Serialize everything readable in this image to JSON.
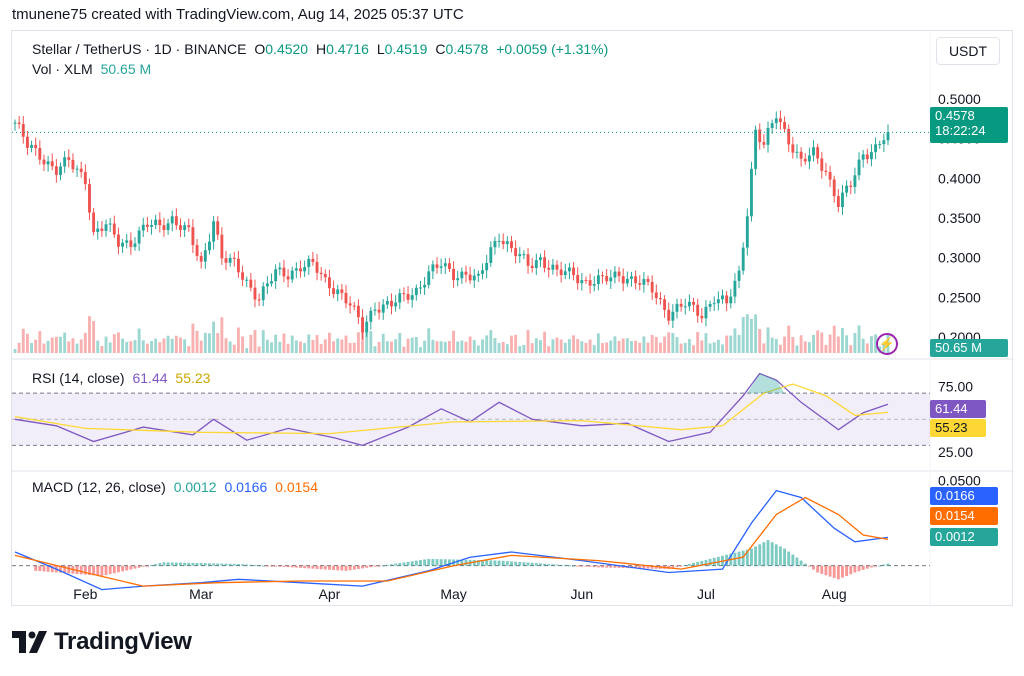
{
  "header": {
    "caption": "tmunene75 created with TradingView.com, Aug 14, 2025 05:37 UTC"
  },
  "symbol": {
    "name": "Stellar / TetherUS · 1D · BINANCE",
    "o_label": "O",
    "o": "0.4520",
    "h_label": "H",
    "h": "0.4716",
    "l_label": "L",
    "l": "0.4519",
    "c_label": "C",
    "c": "0.4578",
    "change": "+0.0059 (+1.31%)",
    "currency": "USDT"
  },
  "vol": {
    "label": "Vol · XLM",
    "value": "50.65 M",
    "tag": "50.65 M"
  },
  "price_tag": {
    "value": "0.4578",
    "countdown": "18:22:24"
  },
  "rsi": {
    "label": "RSI (14, close)",
    "value": "61.44",
    "ma": "55.23",
    "tick_hi": "75.00",
    "tick_lo": "25.00"
  },
  "macd": {
    "label": "MACD (12, 26, close)",
    "hist": "0.0012",
    "macd": "0.0166",
    "signal": "0.0154",
    "tick_top": "0.0500"
  },
  "branding": {
    "name": "TradingView"
  },
  "colors": {
    "up": "#26a69a",
    "down": "#ef5350",
    "rsi_line": "#7e57c2",
    "rsi_ma": "#fdd835",
    "macd_line": "#2962ff",
    "signal_line": "#ff6d00",
    "last_price": "#089981"
  },
  "chart_data": {
    "type": "candlestick",
    "title": "Stellar / TetherUS · 1D · BINANCE",
    "y_ticks": [
      "0.5000",
      "0.4500",
      "0.4000",
      "0.3500",
      "0.3000",
      "0.2500",
      "0.2000"
    ],
    "ylim": [
      0.18,
      0.53
    ],
    "x_ticks": [
      "Feb",
      "Mar",
      "Apr",
      "May",
      "Jun",
      "Jul",
      "Aug"
    ],
    "x_tick_dates": [
      "2025-02-01",
      "2025-03-01",
      "2025-04-01",
      "2025-05-01",
      "2025-06-01",
      "2025-07-01",
      "2025-08-01"
    ],
    "date_range": [
      "2025-01-15",
      "2025-08-14"
    ],
    "close_path": [
      [
        "2025-01-15",
        0.47
      ],
      [
        "2025-01-18",
        0.44
      ],
      [
        "2025-01-21",
        0.43
      ],
      [
        "2025-01-25",
        0.41
      ],
      [
        "2025-01-28",
        0.42
      ],
      [
        "2025-02-01",
        0.4
      ],
      [
        "2025-02-03",
        0.33
      ],
      [
        "2025-02-06",
        0.34
      ],
      [
        "2025-02-09",
        0.32
      ],
      [
        "2025-02-12",
        0.32
      ],
      [
        "2025-02-16",
        0.34
      ],
      [
        "2025-02-19",
        0.34
      ],
      [
        "2025-02-22",
        0.35
      ],
      [
        "2025-02-26",
        0.33
      ],
      [
        "2025-03-01",
        0.29
      ],
      [
        "2025-03-04",
        0.35
      ],
      [
        "2025-03-06",
        0.3
      ],
      [
        "2025-03-09",
        0.29
      ],
      [
        "2025-03-12",
        0.27
      ],
      [
        "2025-03-15",
        0.25
      ],
      [
        "2025-03-19",
        0.28
      ],
      [
        "2025-03-22",
        0.28
      ],
      [
        "2025-03-25",
        0.29
      ],
      [
        "2025-03-28",
        0.29
      ],
      [
        "2025-03-31",
        0.27
      ],
      [
        "2025-04-03",
        0.26
      ],
      [
        "2025-04-06",
        0.24
      ],
      [
        "2025-04-09",
        0.21
      ],
      [
        "2025-04-12",
        0.24
      ],
      [
        "2025-04-16",
        0.24
      ],
      [
        "2025-04-19",
        0.25
      ],
      [
        "2025-04-22",
        0.26
      ],
      [
        "2025-04-25",
        0.28
      ],
      [
        "2025-04-28",
        0.29
      ],
      [
        "2025-05-01",
        0.28
      ],
      [
        "2025-05-04",
        0.28
      ],
      [
        "2025-05-07",
        0.27
      ],
      [
        "2025-05-10",
        0.31
      ],
      [
        "2025-05-12",
        0.33
      ],
      [
        "2025-05-15",
        0.31
      ],
      [
        "2025-05-19",
        0.29
      ],
      [
        "2025-05-22",
        0.3
      ],
      [
        "2025-05-26",
        0.28
      ],
      [
        "2025-05-30",
        0.28
      ],
      [
        "2025-06-02",
        0.27
      ],
      [
        "2025-06-06",
        0.27
      ],
      [
        "2025-06-10",
        0.28
      ],
      [
        "2025-06-14",
        0.27
      ],
      [
        "2025-06-18",
        0.26
      ],
      [
        "2025-06-22",
        0.23
      ],
      [
        "2025-06-26",
        0.24
      ],
      [
        "2025-06-30",
        0.23
      ],
      [
        "2025-07-03",
        0.25
      ],
      [
        "2025-07-06",
        0.24
      ],
      [
        "2025-07-09",
        0.28
      ],
      [
        "2025-07-11",
        0.36
      ],
      [
        "2025-07-13",
        0.46
      ],
      [
        "2025-07-15",
        0.44
      ],
      [
        "2025-07-18",
        0.48
      ],
      [
        "2025-07-21",
        0.45
      ],
      [
        "2025-07-24",
        0.42
      ],
      [
        "2025-07-27",
        0.43
      ],
      [
        "2025-07-30",
        0.41
      ],
      [
        "2025-08-02",
        0.37
      ],
      [
        "2025-08-05",
        0.39
      ],
      [
        "2025-08-08",
        0.43
      ],
      [
        "2025-08-11",
        0.44
      ],
      [
        "2025-08-14",
        0.4578
      ]
    ],
    "last_price": 0.4578,
    "volume_last": "50.65 M",
    "rsi": {
      "ylim": [
        15,
        90
      ],
      "bands": [
        70,
        30
      ],
      "ticks": [
        75,
        25
      ],
      "series": [
        {
          "name": "RSI",
          "points": [
            [
              "2025-01-15",
              50
            ],
            [
              "2025-01-25",
              45
            ],
            [
              "2025-02-03",
              33
            ],
            [
              "2025-02-15",
              44
            ],
            [
              "2025-02-27",
              38
            ],
            [
              "2025-03-04",
              50
            ],
            [
              "2025-03-12",
              34
            ],
            [
              "2025-03-22",
              43
            ],
            [
              "2025-04-02",
              36
            ],
            [
              "2025-04-09",
              30
            ],
            [
              "2025-04-20",
              44
            ],
            [
              "2025-04-28",
              58
            ],
            [
              "2025-05-05",
              48
            ],
            [
              "2025-05-12",
              63
            ],
            [
              "2025-05-20",
              50
            ],
            [
              "2025-06-01",
              45
            ],
            [
              "2025-06-12",
              47
            ],
            [
              "2025-06-22",
              33
            ],
            [
              "2025-07-02",
              40
            ],
            [
              "2025-07-10",
              68
            ],
            [
              "2025-07-14",
              85
            ],
            [
              "2025-07-18",
              80
            ],
            [
              "2025-07-24",
              63
            ],
            [
              "2025-08-02",
              42
            ],
            [
              "2025-08-08",
              55
            ],
            [
              "2025-08-14",
              61.44
            ]
          ]
        },
        {
          "name": "RSI-based MA",
          "points": [
            [
              "2025-01-15",
              52
            ],
            [
              "2025-02-01",
              43
            ],
            [
              "2025-03-01",
              40
            ],
            [
              "2025-04-01",
              39
            ],
            [
              "2025-05-01",
              48
            ],
            [
              "2025-06-01",
              49
            ],
            [
              "2025-06-25",
              42
            ],
            [
              "2025-07-05",
              45
            ],
            [
              "2025-07-15",
              70
            ],
            [
              "2025-07-22",
              77
            ],
            [
              "2025-07-30",
              68
            ],
            [
              "2025-08-06",
              53
            ],
            [
              "2025-08-14",
              55.23
            ]
          ]
        }
      ],
      "last_rsi": 61.44,
      "last_ma": 55.23
    },
    "macd": {
      "ylim": [
        -0.0125,
        0.052
      ],
      "ticks": [
        0.05
      ],
      "series": [
        {
          "name": "MACD",
          "points": [
            [
              "2025-01-15",
              0.008
            ],
            [
              "2025-01-25",
              -0.002
            ],
            [
              "2025-02-05",
              -0.014
            ],
            [
              "2025-02-15",
              -0.012
            ],
            [
              "2025-03-01",
              -0.01
            ],
            [
              "2025-03-10",
              -0.008
            ],
            [
              "2025-03-25",
              -0.01
            ],
            [
              "2025-04-09",
              -0.012
            ],
            [
              "2025-04-25",
              -0.003
            ],
            [
              "2025-05-05",
              0.005
            ],
            [
              "2025-05-15",
              0.008
            ],
            [
              "2025-06-01",
              0.003
            ],
            [
              "2025-06-22",
              -0.004
            ],
            [
              "2025-07-05",
              -0.002
            ],
            [
              "2025-07-12",
              0.025
            ],
            [
              "2025-07-18",
              0.044
            ],
            [
              "2025-07-24",
              0.04
            ],
            [
              "2025-08-01",
              0.022
            ],
            [
              "2025-08-06",
              0.014
            ],
            [
              "2025-08-14",
              0.0166
            ]
          ]
        },
        {
          "name": "Signal",
          "points": [
            [
              "2025-01-15",
              0.006
            ],
            [
              "2025-02-01",
              -0.004
            ],
            [
              "2025-02-15",
              -0.012
            ],
            [
              "2025-03-05",
              -0.01
            ],
            [
              "2025-03-25",
              -0.009
            ],
            [
              "2025-04-15",
              -0.009
            ],
            [
              "2025-05-01",
              0.0
            ],
            [
              "2025-05-15",
              0.006
            ],
            [
              "2025-06-05",
              0.003
            ],
            [
              "2025-06-25",
              -0.002
            ],
            [
              "2025-07-10",
              0.005
            ],
            [
              "2025-07-18",
              0.03
            ],
            [
              "2025-07-25",
              0.04
            ],
            [
              "2025-08-02",
              0.03
            ],
            [
              "2025-08-08",
              0.018
            ],
            [
              "2025-08-14",
              0.0154
            ]
          ]
        }
      ],
      "histogram": [
        [
          "2025-01-20",
          -0.003
        ],
        [
          "2025-02-05",
          -0.006
        ],
        [
          "2025-02-20",
          0.002
        ],
        [
          "2025-03-10",
          0.001
        ],
        [
          "2025-04-05",
          -0.003
        ],
        [
          "2025-04-25",
          0.004
        ],
        [
          "2025-05-12",
          0.003
        ],
        [
          "2025-06-05",
          -0.001
        ],
        [
          "2025-06-22",
          -0.002
        ],
        [
          "2025-07-12",
          0.01
        ],
        [
          "2025-07-16",
          0.015
        ],
        [
          "2025-07-20",
          0.01
        ],
        [
          "2025-07-28",
          -0.004
        ],
        [
          "2025-08-02",
          -0.008
        ],
        [
          "2025-08-06",
          -0.004
        ],
        [
          "2025-08-10",
          -0.001
        ],
        [
          "2025-08-14",
          0.0012
        ]
      ],
      "last_hist": 0.0012,
      "last_macd": 0.0166,
      "last_signal": 0.0154
    }
  }
}
